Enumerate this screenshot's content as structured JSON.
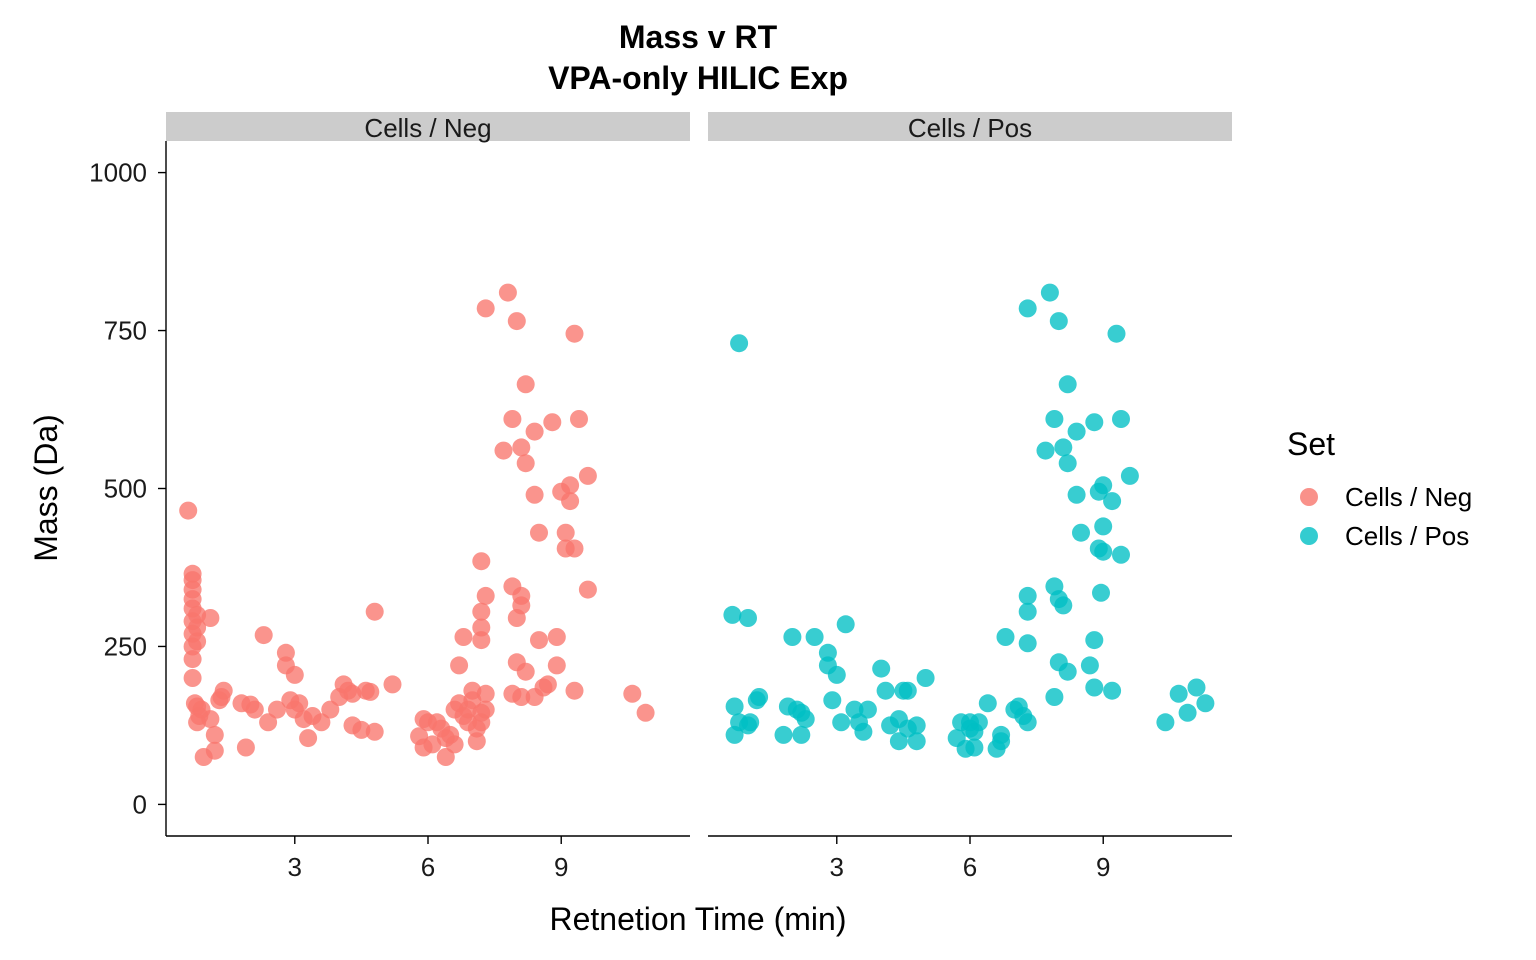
{
  "chart_data": {
    "type": "scatter",
    "title": "Mass v RT",
    "subtitle": "VPA-only HILIC Exp",
    "xlabel": "Retnetion Time (min)",
    "ylabel": "Mass (Da)",
    "xlim": [
      0.1,
      11.9
    ],
    "ylim": [
      -50,
      1050
    ],
    "x_ticks": [
      3,
      6,
      9
    ],
    "y_ticks": [
      0,
      250,
      500,
      750,
      1000
    ],
    "grid": false,
    "legend": {
      "title": "Set",
      "position": "right"
    },
    "facets": [
      "Cells / Neg",
      "Cells / Pos"
    ],
    "series": [
      {
        "name": "Cells / Neg",
        "facet": "Cells / Neg",
        "color": "#F8766D",
        "points": [
          [
            0.6,
            465
          ],
          [
            0.7,
            365
          ],
          [
            0.7,
            355
          ],
          [
            0.7,
            340
          ],
          [
            0.7,
            325
          ],
          [
            0.7,
            310
          ],
          [
            0.8,
            300
          ],
          [
            0.7,
            290
          ],
          [
            0.8,
            280
          ],
          [
            0.7,
            270
          ],
          [
            0.8,
            258
          ],
          [
            0.7,
            250
          ],
          [
            0.7,
            230
          ],
          [
            0.7,
            200
          ],
          [
            0.75,
            160
          ],
          [
            0.8,
            155
          ],
          [
            0.9,
            150
          ],
          [
            0.85,
            140
          ],
          [
            0.8,
            130
          ],
          [
            1.1,
            135
          ],
          [
            1.2,
            110
          ],
          [
            1.2,
            85
          ],
          [
            0.95,
            75
          ],
          [
            1.1,
            295
          ],
          [
            1.3,
            165
          ],
          [
            1.4,
            180
          ],
          [
            1.35,
            170
          ],
          [
            1.8,
            160
          ],
          [
            2.0,
            158
          ],
          [
            2.1,
            150
          ],
          [
            2.3,
            268
          ],
          [
            2.4,
            130
          ],
          [
            1.9,
            90
          ],
          [
            2.8,
            240
          ],
          [
            2.8,
            220
          ],
          [
            3.0,
            205
          ],
          [
            2.6,
            150
          ],
          [
            2.9,
            165
          ],
          [
            3.1,
            160
          ],
          [
            3.0,
            150
          ],
          [
            3.2,
            135
          ],
          [
            3.4,
            140
          ],
          [
            3.3,
            105
          ],
          [
            3.6,
            130
          ],
          [
            3.8,
            150
          ],
          [
            4.1,
            190
          ],
          [
            4.2,
            180
          ],
          [
            4.0,
            170
          ],
          [
            4.3,
            175
          ],
          [
            4.6,
            180
          ],
          [
            4.7,
            178
          ],
          [
            4.8,
            305
          ],
          [
            4.3,
            125
          ],
          [
            4.5,
            118
          ],
          [
            4.8,
            115
          ],
          [
            5.2,
            190
          ],
          [
            5.9,
            135
          ],
          [
            5.8,
            108
          ],
          [
            5.9,
            90
          ],
          [
            6.0,
            130
          ],
          [
            6.1,
            95
          ],
          [
            6.2,
            130
          ],
          [
            6.3,
            120
          ],
          [
            6.4,
            105
          ],
          [
            6.4,
            75
          ],
          [
            6.5,
            110
          ],
          [
            6.6,
            95
          ],
          [
            6.7,
            220
          ],
          [
            6.8,
            265
          ],
          [
            6.6,
            150
          ],
          [
            6.7,
            160
          ],
          [
            6.8,
            140
          ],
          [
            6.9,
            150
          ],
          [
            6.9,
            130
          ],
          [
            7.0,
            165
          ],
          [
            7.0,
            180
          ],
          [
            7.1,
            120
          ],
          [
            7.1,
            100
          ],
          [
            7.2,
            145
          ],
          [
            7.2,
            130
          ],
          [
            7.3,
            150
          ],
          [
            7.3,
            175
          ],
          [
            7.2,
            260
          ],
          [
            7.2,
            280
          ],
          [
            7.2,
            305
          ],
          [
            7.3,
            330
          ],
          [
            7.2,
            385
          ],
          [
            7.3,
            785
          ],
          [
            7.8,
            810
          ],
          [
            8.0,
            765
          ],
          [
            8.2,
            665
          ],
          [
            7.9,
            610
          ],
          [
            8.1,
            565
          ],
          [
            7.7,
            560
          ],
          [
            8.2,
            540
          ],
          [
            7.9,
            345
          ],
          [
            8.1,
            330
          ],
          [
            8.1,
            315
          ],
          [
            8.0,
            295
          ],
          [
            8.0,
            225
          ],
          [
            8.2,
            210
          ],
          [
            7.9,
            175
          ],
          [
            8.1,
            170
          ],
          [
            8.4,
            590
          ],
          [
            8.4,
            490
          ],
          [
            8.5,
            430
          ],
          [
            8.5,
            260
          ],
          [
            8.4,
            170
          ],
          [
            8.6,
            185
          ],
          [
            8.7,
            190
          ],
          [
            8.8,
            605
          ],
          [
            9.0,
            495
          ],
          [
            8.9,
            265
          ],
          [
            8.9,
            220
          ],
          [
            9.1,
            405
          ],
          [
            9.1,
            430
          ],
          [
            9.2,
            480
          ],
          [
            9.2,
            505
          ],
          [
            9.3,
            745
          ],
          [
            9.4,
            610
          ],
          [
            9.6,
            520
          ],
          [
            9.6,
            340
          ],
          [
            9.3,
            405
          ],
          [
            9.3,
            180
          ],
          [
            10.6,
            175
          ],
          [
            10.9,
            145
          ]
        ]
      },
      {
        "name": "Cells / Pos",
        "facet": "Cells / Pos",
        "color": "#00BFC4",
        "points": [
          [
            0.8,
            730
          ],
          [
            0.65,
            300
          ],
          [
            1.0,
            295
          ],
          [
            0.7,
            155
          ],
          [
            0.8,
            130
          ],
          [
            0.7,
            110
          ],
          [
            1.0,
            125
          ],
          [
            1.05,
            130
          ],
          [
            1.2,
            165
          ],
          [
            1.25,
            170
          ],
          [
            2.0,
            265
          ],
          [
            2.5,
            265
          ],
          [
            1.9,
            155
          ],
          [
            2.1,
            150
          ],
          [
            2.2,
            145
          ],
          [
            2.3,
            135
          ],
          [
            1.8,
            110
          ],
          [
            2.2,
            110
          ],
          [
            2.8,
            240
          ],
          [
            2.8,
            220
          ],
          [
            3.0,
            205
          ],
          [
            3.2,
            285
          ],
          [
            2.9,
            165
          ],
          [
            3.1,
            130
          ],
          [
            3.4,
            150
          ],
          [
            3.6,
            115
          ],
          [
            3.5,
            130
          ],
          [
            3.7,
            150
          ],
          [
            4.0,
            215
          ],
          [
            4.1,
            180
          ],
          [
            4.2,
            125
          ],
          [
            4.4,
            135
          ],
          [
            4.5,
            180
          ],
          [
            4.6,
            180
          ],
          [
            4.4,
            100
          ],
          [
            4.6,
            120
          ],
          [
            4.8,
            100
          ],
          [
            4.8,
            125
          ],
          [
            5.0,
            200
          ],
          [
            5.7,
            105
          ],
          [
            5.8,
            130
          ],
          [
            5.9,
            88
          ],
          [
            6.0,
            120
          ],
          [
            6.0,
            130
          ],
          [
            6.1,
            90
          ],
          [
            6.2,
            130
          ],
          [
            6.1,
            115
          ],
          [
            6.4,
            160
          ],
          [
            6.6,
            88
          ],
          [
            6.7,
            100
          ],
          [
            6.8,
            265
          ],
          [
            6.7,
            110
          ],
          [
            7.0,
            150
          ],
          [
            7.1,
            155
          ],
          [
            7.2,
            140
          ],
          [
            7.3,
            130
          ],
          [
            7.3,
            305
          ],
          [
            7.3,
            330
          ],
          [
            7.3,
            255
          ],
          [
            7.3,
            785
          ],
          [
            7.8,
            810
          ],
          [
            8.0,
            765
          ],
          [
            8.2,
            665
          ],
          [
            7.9,
            610
          ],
          [
            8.1,
            565
          ],
          [
            7.7,
            560
          ],
          [
            8.2,
            540
          ],
          [
            7.9,
            345
          ],
          [
            8.0,
            325
          ],
          [
            8.1,
            315
          ],
          [
            8.0,
            225
          ],
          [
            8.2,
            210
          ],
          [
            7.9,
            170
          ],
          [
            8.4,
            590
          ],
          [
            8.4,
            490
          ],
          [
            8.5,
            430
          ],
          [
            8.8,
            605
          ],
          [
            8.9,
            495
          ],
          [
            8.8,
            260
          ],
          [
            8.7,
            220
          ],
          [
            8.8,
            185
          ],
          [
            8.9,
            405
          ],
          [
            9.0,
            505
          ],
          [
            9.0,
            440
          ],
          [
            9.0,
            400
          ],
          [
            8.95,
            335
          ],
          [
            9.2,
            480
          ],
          [
            9.3,
            745
          ],
          [
            9.4,
            610
          ],
          [
            9.6,
            520
          ],
          [
            9.4,
            395
          ],
          [
            9.2,
            180
          ],
          [
            10.4,
            130
          ],
          [
            10.7,
            175
          ],
          [
            10.9,
            145
          ],
          [
            11.1,
            185
          ],
          [
            11.3,
            160
          ]
        ]
      }
    ]
  }
}
